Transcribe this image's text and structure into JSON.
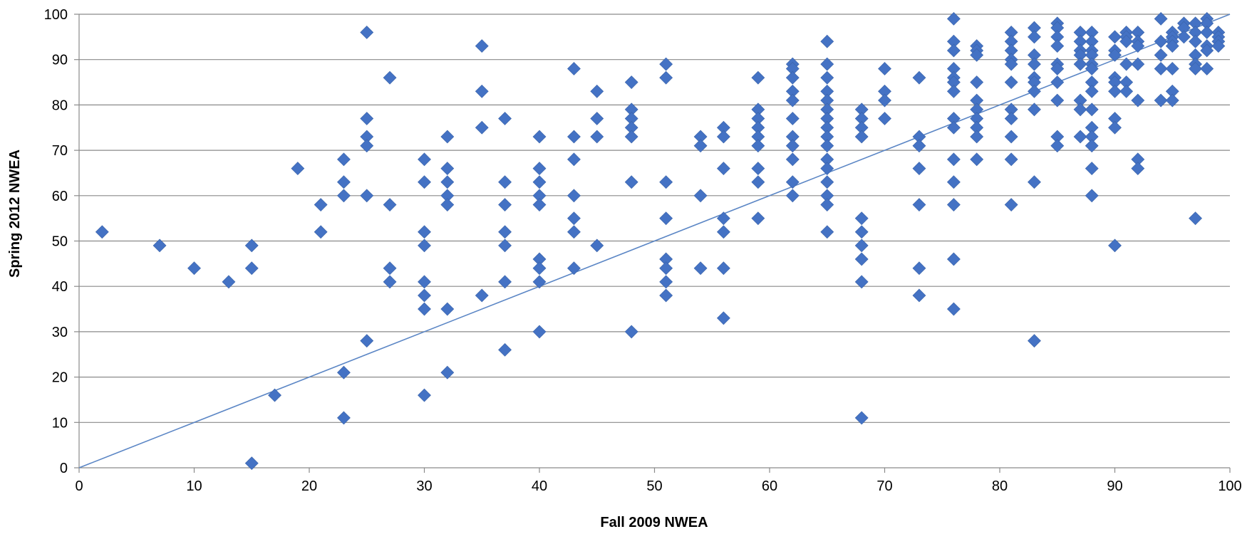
{
  "chart_data": {
    "type": "scatter",
    "title": "",
    "xlabel": "Fall 2009 NWEA",
    "ylabel": "Spring 2012 NWEA",
    "xlim": [
      0,
      100
    ],
    "ylim": [
      0,
      100
    ],
    "x_ticks": [
      "0",
      "10",
      "20",
      "30",
      "40",
      "50",
      "60",
      "70",
      "80",
      "90",
      "100"
    ],
    "y_ticks": [
      "0",
      "10",
      "20",
      "30",
      "40",
      "50",
      "60",
      "70",
      "80",
      "90",
      "100"
    ],
    "grid": "horizontal",
    "legend": "none",
    "marker": "diamond",
    "marker_color": "#4472C4",
    "reference_line": {
      "label": "",
      "points": [
        [
          0,
          0
        ],
        [
          100,
          100
        ]
      ],
      "color": "#5B86C5"
    },
    "series": [
      {
        "points": [
          [
            2,
            52
          ],
          [
            7,
            49
          ],
          [
            10,
            44
          ],
          [
            13,
            41
          ],
          [
            15,
            49
          ],
          [
            15,
            44
          ],
          [
            15,
            1
          ],
          [
            17,
            16
          ],
          [
            19,
            66
          ],
          [
            21,
            58
          ],
          [
            21,
            52
          ],
          [
            23,
            68
          ],
          [
            23,
            63
          ],
          [
            23,
            60
          ],
          [
            23,
            21
          ],
          [
            23,
            11
          ],
          [
            25,
            96
          ],
          [
            25,
            77
          ],
          [
            25,
            73
          ],
          [
            25,
            71
          ],
          [
            25,
            60
          ],
          [
            25,
            28
          ],
          [
            27,
            86
          ],
          [
            27,
            58
          ],
          [
            27,
            44
          ],
          [
            27,
            41
          ],
          [
            30,
            68
          ],
          [
            30,
            63
          ],
          [
            30,
            52
          ],
          [
            30,
            49
          ],
          [
            30,
            41
          ],
          [
            30,
            38
          ],
          [
            30,
            35
          ],
          [
            30,
            16
          ],
          [
            32,
            73
          ],
          [
            32,
            66
          ],
          [
            32,
            63
          ],
          [
            32,
            60
          ],
          [
            32,
            58
          ],
          [
            32,
            35
          ],
          [
            32,
            21
          ],
          [
            35,
            93
          ],
          [
            35,
            83
          ],
          [
            35,
            75
          ],
          [
            35,
            38
          ],
          [
            37,
            77
          ],
          [
            37,
            63
          ],
          [
            37,
            58
          ],
          [
            37,
            52
          ],
          [
            37,
            49
          ],
          [
            37,
            41
          ],
          [
            37,
            26
          ],
          [
            40,
            73
          ],
          [
            40,
            66
          ],
          [
            40,
            63
          ],
          [
            40,
            60
          ],
          [
            40,
            58
          ],
          [
            40,
            46
          ],
          [
            40,
            44
          ],
          [
            40,
            41
          ],
          [
            40,
            30
          ],
          [
            43,
            88
          ],
          [
            43,
            73
          ],
          [
            43,
            68
          ],
          [
            43,
            60
          ],
          [
            43,
            55
          ],
          [
            43,
            52
          ],
          [
            43,
            44
          ],
          [
            45,
            83
          ],
          [
            45,
            77
          ],
          [
            45,
            73
          ],
          [
            45,
            49
          ],
          [
            48,
            85
          ],
          [
            48,
            79
          ],
          [
            48,
            77
          ],
          [
            48,
            75
          ],
          [
            48,
            73
          ],
          [
            48,
            63
          ],
          [
            48,
            30
          ],
          [
            51,
            89
          ],
          [
            51,
            86
          ],
          [
            51,
            63
          ],
          [
            51,
            55
          ],
          [
            51,
            46
          ],
          [
            51,
            44
          ],
          [
            51,
            41
          ],
          [
            51,
            38
          ],
          [
            54,
            73
          ],
          [
            54,
            71
          ],
          [
            54,
            60
          ],
          [
            54,
            44
          ],
          [
            56,
            75
          ],
          [
            56,
            73
          ],
          [
            56,
            66
          ],
          [
            56,
            55
          ],
          [
            56,
            52
          ],
          [
            56,
            44
          ],
          [
            56,
            33
          ],
          [
            59,
            86
          ],
          [
            59,
            79
          ],
          [
            59,
            77
          ],
          [
            59,
            75
          ],
          [
            59,
            73
          ],
          [
            59,
            71
          ],
          [
            59,
            66
          ],
          [
            59,
            63
          ],
          [
            59,
            55
          ],
          [
            62,
            89
          ],
          [
            62,
            88
          ],
          [
            62,
            86
          ],
          [
            62,
            83
          ],
          [
            62,
            81
          ],
          [
            62,
            77
          ],
          [
            62,
            73
          ],
          [
            62,
            71
          ],
          [
            62,
            68
          ],
          [
            62,
            63
          ],
          [
            62,
            60
          ],
          [
            65,
            94
          ],
          [
            65,
            89
          ],
          [
            65,
            86
          ],
          [
            65,
            83
          ],
          [
            65,
            81
          ],
          [
            65,
            79
          ],
          [
            65,
            77
          ],
          [
            65,
            75
          ],
          [
            65,
            73
          ],
          [
            65,
            71
          ],
          [
            65,
            68
          ],
          [
            65,
            66
          ],
          [
            65,
            63
          ],
          [
            65,
            60
          ],
          [
            65,
            58
          ],
          [
            65,
            52
          ],
          [
            68,
            79
          ],
          [
            68,
            77
          ],
          [
            68,
            75
          ],
          [
            68,
            73
          ],
          [
            68,
            55
          ],
          [
            68,
            52
          ],
          [
            68,
            49
          ],
          [
            68,
            46
          ],
          [
            68,
            41
          ],
          [
            68,
            11
          ],
          [
            70,
            88
          ],
          [
            70,
            83
          ],
          [
            70,
            81
          ],
          [
            70,
            77
          ],
          [
            73,
            86
          ],
          [
            73,
            73
          ],
          [
            73,
            71
          ],
          [
            73,
            66
          ],
          [
            73,
            58
          ],
          [
            73,
            44
          ],
          [
            73,
            38
          ],
          [
            76,
            99
          ],
          [
            76,
            94
          ],
          [
            76,
            92
          ],
          [
            76,
            88
          ],
          [
            76,
            86
          ],
          [
            76,
            85
          ],
          [
            76,
            83
          ],
          [
            76,
            77
          ],
          [
            76,
            75
          ],
          [
            76,
            68
          ],
          [
            76,
            63
          ],
          [
            76,
            58
          ],
          [
            76,
            46
          ],
          [
            76,
            35
          ],
          [
            78,
            93
          ],
          [
            78,
            92
          ],
          [
            78,
            91
          ],
          [
            78,
            85
          ],
          [
            78,
            81
          ],
          [
            78,
            79
          ],
          [
            78,
            77
          ],
          [
            78,
            75
          ],
          [
            78,
            73
          ],
          [
            78,
            68
          ],
          [
            81,
            96
          ],
          [
            81,
            94
          ],
          [
            81,
            92
          ],
          [
            81,
            90
          ],
          [
            81,
            89
          ],
          [
            81,
            85
          ],
          [
            81,
            79
          ],
          [
            81,
            77
          ],
          [
            81,
            73
          ],
          [
            81,
            68
          ],
          [
            81,
            58
          ],
          [
            83,
            97
          ],
          [
            83,
            95
          ],
          [
            83,
            91
          ],
          [
            83,
            89
          ],
          [
            83,
            86
          ],
          [
            83,
            85
          ],
          [
            83,
            83
          ],
          [
            83,
            79
          ],
          [
            83,
            63
          ],
          [
            83,
            28
          ],
          [
            85,
            98
          ],
          [
            85,
            97
          ],
          [
            85,
            95
          ],
          [
            85,
            93
          ],
          [
            85,
            89
          ],
          [
            85,
            88
          ],
          [
            85,
            85
          ],
          [
            85,
            81
          ],
          [
            85,
            73
          ],
          [
            85,
            71
          ],
          [
            87,
            96
          ],
          [
            87,
            94
          ],
          [
            87,
            92
          ],
          [
            87,
            91
          ],
          [
            87,
            89
          ],
          [
            87,
            81
          ],
          [
            87,
            79
          ],
          [
            87,
            73
          ],
          [
            88,
            96
          ],
          [
            88,
            94
          ],
          [
            88,
            92
          ],
          [
            88,
            91
          ],
          [
            88,
            89
          ],
          [
            88,
            88
          ],
          [
            88,
            85
          ],
          [
            88,
            83
          ],
          [
            88,
            79
          ],
          [
            88,
            75
          ],
          [
            88,
            73
          ],
          [
            88,
            71
          ],
          [
            88,
            66
          ],
          [
            88,
            60
          ],
          [
            90,
            95
          ],
          [
            90,
            92
          ],
          [
            90,
            91
          ],
          [
            90,
            86
          ],
          [
            90,
            85
          ],
          [
            90,
            83
          ],
          [
            90,
            77
          ],
          [
            90,
            75
          ],
          [
            90,
            49
          ],
          [
            91,
            96
          ],
          [
            91,
            95
          ],
          [
            91,
            94
          ],
          [
            91,
            89
          ],
          [
            91,
            85
          ],
          [
            91,
            83
          ],
          [
            92,
            96
          ],
          [
            92,
            94
          ],
          [
            92,
            93
          ],
          [
            92,
            89
          ],
          [
            92,
            81
          ],
          [
            92,
            68
          ],
          [
            92,
            66
          ],
          [
            94,
            99
          ],
          [
            94,
            94
          ],
          [
            94,
            91
          ],
          [
            94,
            88
          ],
          [
            94,
            81
          ],
          [
            95,
            96
          ],
          [
            95,
            95
          ],
          [
            95,
            94
          ],
          [
            95,
            93
          ],
          [
            95,
            88
          ],
          [
            95,
            83
          ],
          [
            95,
            81
          ],
          [
            96,
            98
          ],
          [
            96,
            97
          ],
          [
            96,
            95
          ],
          [
            97,
            98
          ],
          [
            97,
            96
          ],
          [
            97,
            94
          ],
          [
            97,
            91
          ],
          [
            97,
            89
          ],
          [
            97,
            88
          ],
          [
            97,
            55
          ],
          [
            98,
            99
          ],
          [
            98,
            98
          ],
          [
            98,
            96
          ],
          [
            98,
            93
          ],
          [
            98,
            92
          ],
          [
            98,
            88
          ],
          [
            99,
            96
          ],
          [
            99,
            95
          ],
          [
            99,
            94
          ],
          [
            99,
            93
          ]
        ]
      }
    ]
  }
}
